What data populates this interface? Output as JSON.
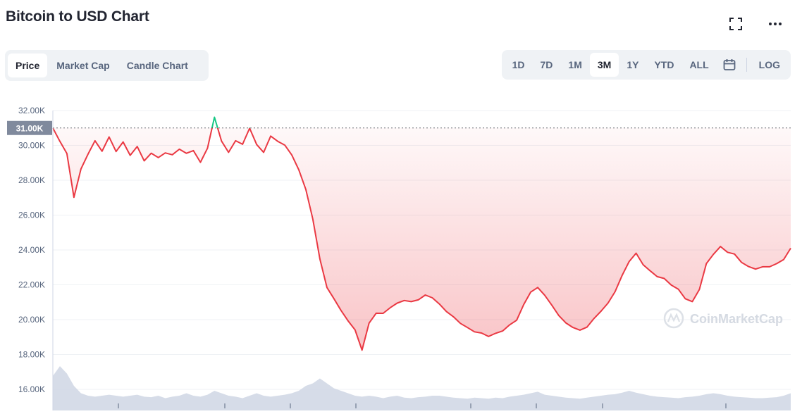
{
  "header": {
    "title": "Bitcoin to USD Chart"
  },
  "icons": {
    "fullscreen": "fullscreen-icon",
    "more": "more-icon",
    "calendar": "calendar-icon"
  },
  "view_tabs": [
    {
      "label": "Price",
      "active": true
    },
    {
      "label": "Market Cap",
      "active": false
    },
    {
      "label": "Candle Chart",
      "active": false
    }
  ],
  "ranges": [
    {
      "label": "1D",
      "active": false
    },
    {
      "label": "7D",
      "active": false
    },
    {
      "label": "1M",
      "active": false
    },
    {
      "label": "3M",
      "active": true
    },
    {
      "label": "1Y",
      "active": false
    },
    {
      "label": "YTD",
      "active": false
    },
    {
      "label": "ALL",
      "active": false
    }
  ],
  "log_label": "LOG",
  "watermark": "CoinMarketCap",
  "colors": {
    "down": "#ea3943",
    "up": "#16c784",
    "volume": "#cfd6e4",
    "grid": "#eff2f5",
    "badge": "#808a9d"
  },
  "chart_data": {
    "type": "line",
    "title": "Bitcoin to USD Chart",
    "xlabel": "",
    "ylabel": "",
    "ylim": [
      15000,
      33000
    ],
    "yticks": [
      "32.00K",
      "30.00K",
      "28.00K",
      "26.00K",
      "24.00K",
      "22.00K",
      "20.00K",
      "18.00K",
      "16.00K"
    ],
    "ytick_values": [
      32000,
      30000,
      28000,
      26000,
      24000,
      22000,
      20000,
      18000,
      16000
    ],
    "reference_price": 31000,
    "reference_label": "31.00K",
    "grid": true,
    "series": [
      {
        "values": [
          31000,
          30200,
          29600,
          27000,
          28700,
          29500,
          30300,
          29600,
          30500,
          29600,
          30200,
          29400,
          30000,
          29100,
          29600,
          29300,
          29600,
          29400,
          29800,
          29500,
          29700,
          29000,
          29900,
          31600,
          30300,
          29600,
          30300,
          30000,
          31000,
          30000,
          29600,
          30500,
          30300,
          30000,
          29500,
          28600,
          27500,
          25700,
          23500,
          21800,
          21200,
          20500,
          20000,
          19400,
          18300,
          19800,
          20400,
          20300,
          20700,
          20900,
          21100,
          21000,
          21200,
          21400,
          21300,
          20900,
          20500,
          20100,
          19800,
          19500,
          19300,
          19200,
          19100,
          19200,
          19400,
          19700,
          20000,
          20800,
          21600,
          21800,
          21400,
          20800,
          20300,
          19800,
          19600,
          19400,
          19600,
          20000,
          20500,
          20900,
          21600,
          22500,
          23400,
          23800,
          23200,
          22800,
          22500,
          22300,
          22000,
          21700,
          21200,
          21000,
          21800,
          23200,
          23800,
          24200,
          23900,
          23700,
          23300,
          23000,
          22900,
          23000,
          23100,
          23200,
          23500,
          24100
        ]
      }
    ],
    "volume_series_relative": [
      0.7,
      0.9,
      0.75,
      0.5,
      0.35,
      0.3,
      0.28,
      0.3,
      0.32,
      0.3,
      0.28,
      0.3,
      0.32,
      0.28,
      0.27,
      0.3,
      0.25,
      0.28,
      0.3,
      0.35,
      0.3,
      0.28,
      0.32,
      0.4,
      0.35,
      0.3,
      0.28,
      0.25,
      0.3,
      0.35,
      0.3,
      0.28,
      0.3,
      0.32,
      0.35,
      0.4,
      0.5,
      0.55,
      0.65,
      0.55,
      0.45,
      0.4,
      0.35,
      0.3,
      0.28,
      0.3,
      0.28,
      0.25,
      0.28,
      0.3,
      0.26,
      0.25,
      0.27,
      0.28,
      0.3,
      0.3,
      0.28,
      0.26,
      0.25,
      0.24,
      0.26,
      0.25,
      0.24,
      0.26,
      0.25,
      0.28,
      0.3,
      0.32,
      0.35,
      0.38,
      0.32,
      0.3,
      0.28,
      0.26,
      0.25,
      0.24,
      0.26,
      0.28,
      0.3,
      0.32,
      0.33,
      0.36,
      0.4,
      0.36,
      0.33,
      0.3,
      0.28,
      0.27,
      0.26,
      0.25,
      0.27,
      0.28,
      0.3,
      0.33,
      0.35,
      0.33,
      0.3,
      0.28,
      0.27,
      0.26,
      0.25,
      0.25,
      0.26,
      0.27,
      0.3,
      0.35
    ]
  }
}
